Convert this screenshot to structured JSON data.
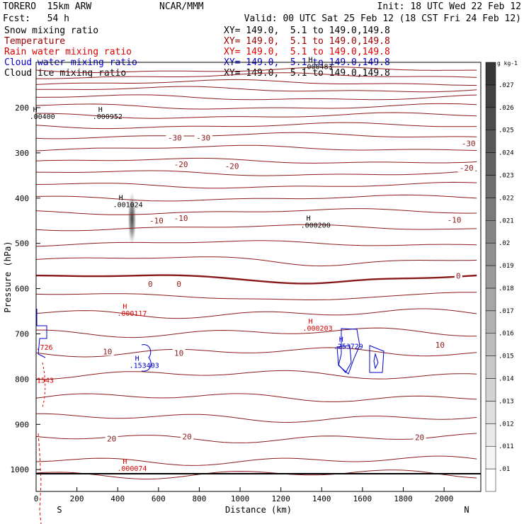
{
  "header": {
    "model": "TORERO  15km ARW",
    "institution": "NCAR/MMM",
    "init": "Init: 18 UTC Wed 22 Feb 12",
    "fcst": "Fcst:   54 h",
    "valid": "Valid: 00 UTC Sat 25 Feb 12 (18 CST Fri 24 Feb 12)"
  },
  "legend": [
    {
      "label": "Snow mixing ratio",
      "xy": "XY= 149.0,  5.1 to 149.0,149.8",
      "color": "#000000"
    },
    {
      "label": "Temperature",
      "xy": "XY= 149.0,  5.1 to 149.0,149.8",
      "color": "#990000"
    },
    {
      "label": "Rain water mixing ratio",
      "xy": "XY= 149.0,  5.1 to 149.0,149.8",
      "color": "#dd0000"
    },
    {
      "label": "Cloud water mixing ratio",
      "xy": "XY= 149.0,  5.1 to 149.0,149.8",
      "color": "#0000cc"
    },
    {
      "label": "Cloud ice mixing ratio",
      "xy": "XY= 149.0,  5.1 to 149.0,149.8",
      "color": "#000000"
    }
  ],
  "colorbar": {
    "unit": "g kg-1",
    "levels": [
      ".01",
      ".011",
      ".012",
      ".013",
      ".014",
      ".015",
      ".016",
      ".017",
      ".018",
      ".019",
      ".02",
      ".021",
      ".022",
      ".023",
      ".024",
      ".025",
      ".026",
      ".027"
    ]
  },
  "chart_data": {
    "type": "contour_cross_section",
    "xlabel": "Distance (km)",
    "ylabel": "Pressure (hPa)",
    "xlim": [
      0,
      2180
    ],
    "ylim": [
      1050,
      100
    ],
    "x_ticks": [
      "0",
      "200",
      "400",
      "600",
      "800",
      "1000",
      "1200",
      "1400",
      "1600",
      "1800",
      "2000"
    ],
    "y_ticks": [
      "200",
      "300",
      "400",
      "500",
      "600",
      "700",
      "800",
      "900",
      "1000"
    ],
    "endpoint_left": "S",
    "endpoint_right": "N",
    "temperature_labels": [
      {
        "text": "-30",
        "x": 680,
        "p": 270
      },
      {
        "text": "-30",
        "x": 820,
        "p": 270
      },
      {
        "text": "-30",
        "x": 2120,
        "p": 282
      },
      {
        "text": "-20",
        "x": 710,
        "p": 328
      },
      {
        "text": "-20",
        "x": 960,
        "p": 332
      },
      {
        "text": "-20",
        "x": 2110,
        "p": 336
      },
      {
        "text": "-10",
        "x": 590,
        "p": 453
      },
      {
        "text": "-10",
        "x": 710,
        "p": 447
      },
      {
        "text": "-10",
        "x": 2050,
        "p": 451
      },
      {
        "text": "0",
        "x": 560,
        "p": 593
      },
      {
        "text": "0",
        "x": 700,
        "p": 593
      },
      {
        "text": "0",
        "x": 2070,
        "p": 575
      },
      {
        "text": "10",
        "x": 350,
        "p": 742
      },
      {
        "text": "10",
        "x": 700,
        "p": 745
      },
      {
        "text": "10",
        "x": 1980,
        "p": 727
      },
      {
        "text": "20",
        "x": 370,
        "p": 935
      },
      {
        "text": "20",
        "x": 740,
        "p": 930
      },
      {
        "text": "20",
        "x": 1880,
        "p": 932
      }
    ],
    "maxima_labels": [
      {
        "text": ".00400",
        "x": 30,
        "p": 225,
        "color": "#000000"
      },
      {
        "text": ".000952",
        "x": 350,
        "p": 225,
        "color": "#000000"
      },
      {
        "text": ".000483",
        "x": 1380,
        "p": 115,
        "color": "#000000"
      },
      {
        "text": ".001024",
        "x": 450,
        "p": 420,
        "color": "#000000"
      },
      {
        "text": ".000200",
        "x": 1370,
        "p": 465,
        "color": "#000000"
      },
      {
        "text": ".000117",
        "x": 470,
        "p": 660,
        "color": "#dd0000"
      },
      {
        "text": ".000203",
        "x": 1380,
        "p": 693,
        "color": "#dd0000"
      },
      {
        "text": ".000074",
        "x": 470,
        "p": 1003,
        "color": "#dd0000"
      },
      {
        "text": ".726",
        "x": 40,
        "p": 735,
        "color": "#dd0000"
      },
      {
        "text": "1543",
        "x": 45,
        "p": 808,
        "color": "#dd0000"
      },
      {
        "text": ".153403",
        "x": 530,
        "p": 775,
        "color": "#0000cc"
      },
      {
        "text": ".253729",
        "x": 1530,
        "p": 733,
        "color": "#0000cc"
      }
    ]
  }
}
